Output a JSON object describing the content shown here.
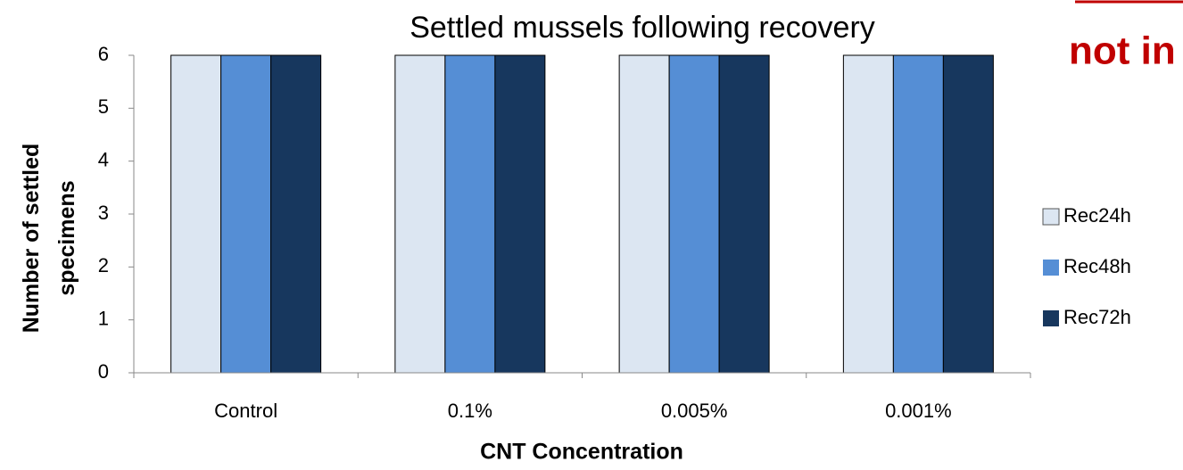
{
  "chart_data": {
    "type": "bar",
    "title": "Settled mussels following recovery",
    "x_label": "CNT Concentration",
    "y_label": "Number of settled specimens",
    "annotation": "not in",
    "categories": [
      "Control",
      "0.1%",
      "0.005%",
      "0.001%"
    ],
    "series": [
      {
        "name": "Rec24h",
        "color": "#dce6f2",
        "values": [
          6,
          6,
          6,
          6
        ]
      },
      {
        "name": "Rec48h",
        "color": "#558ed5",
        "values": [
          6,
          6,
          6,
          6
        ]
      },
      {
        "name": "Rec72h",
        "color": "#17375e",
        "values": [
          6,
          6,
          6,
          6
        ]
      }
    ],
    "ylim": [
      0,
      6
    ],
    "yticks": [
      0,
      1,
      2,
      3,
      4,
      5,
      6
    ],
    "grid": false,
    "legend": "right"
  }
}
